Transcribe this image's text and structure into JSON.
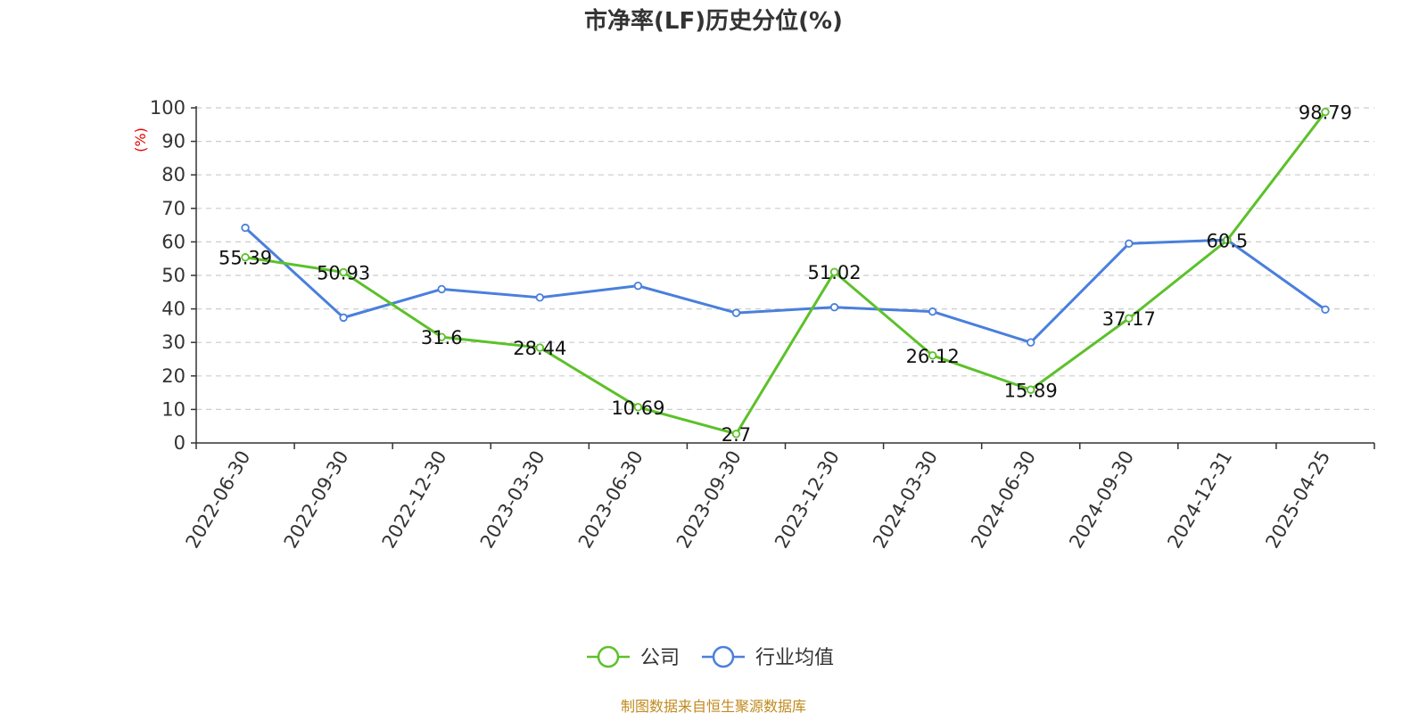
{
  "chart_data": {
    "type": "line",
    "title": "市净率(LF)历史分位(%)",
    "ylabel": "(%)",
    "xlabel": "",
    "ylim": [
      0,
      100
    ],
    "yticks": [
      0,
      10,
      20,
      30,
      40,
      50,
      60,
      70,
      80,
      90,
      100
    ],
    "categories": [
      "2022-06-30",
      "2022-09-30",
      "2022-12-30",
      "2023-03-30",
      "2023-06-30",
      "2023-09-30",
      "2023-12-30",
      "2024-03-30",
      "2024-06-30",
      "2024-09-30",
      "2024-12-31",
      "2025-04-25"
    ],
    "series": [
      {
        "name": "公司",
        "color": "#5cc12a",
        "values": [
          55.39,
          50.93,
          31.6,
          28.44,
          10.69,
          2.7,
          51.02,
          26.12,
          15.89,
          37.17,
          60.5,
          98.79
        ],
        "labels": [
          "55.39",
          "50.93",
          "31.6",
          "28.44",
          "10.69",
          "2.7",
          "51.02",
          "26.12",
          "15.89",
          "37.17",
          "60.5",
          "98.79"
        ]
      },
      {
        "name": "行业均值",
        "color": "#4a7fdc",
        "values": [
          64.2,
          37.4,
          45.9,
          43.4,
          46.9,
          38.8,
          40.5,
          39.2,
          30.0,
          59.5,
          60.6,
          39.8
        ]
      }
    ],
    "grid": true,
    "legend_position": "bottom-center"
  },
  "source": "制图数据来自恒生聚源数据库"
}
